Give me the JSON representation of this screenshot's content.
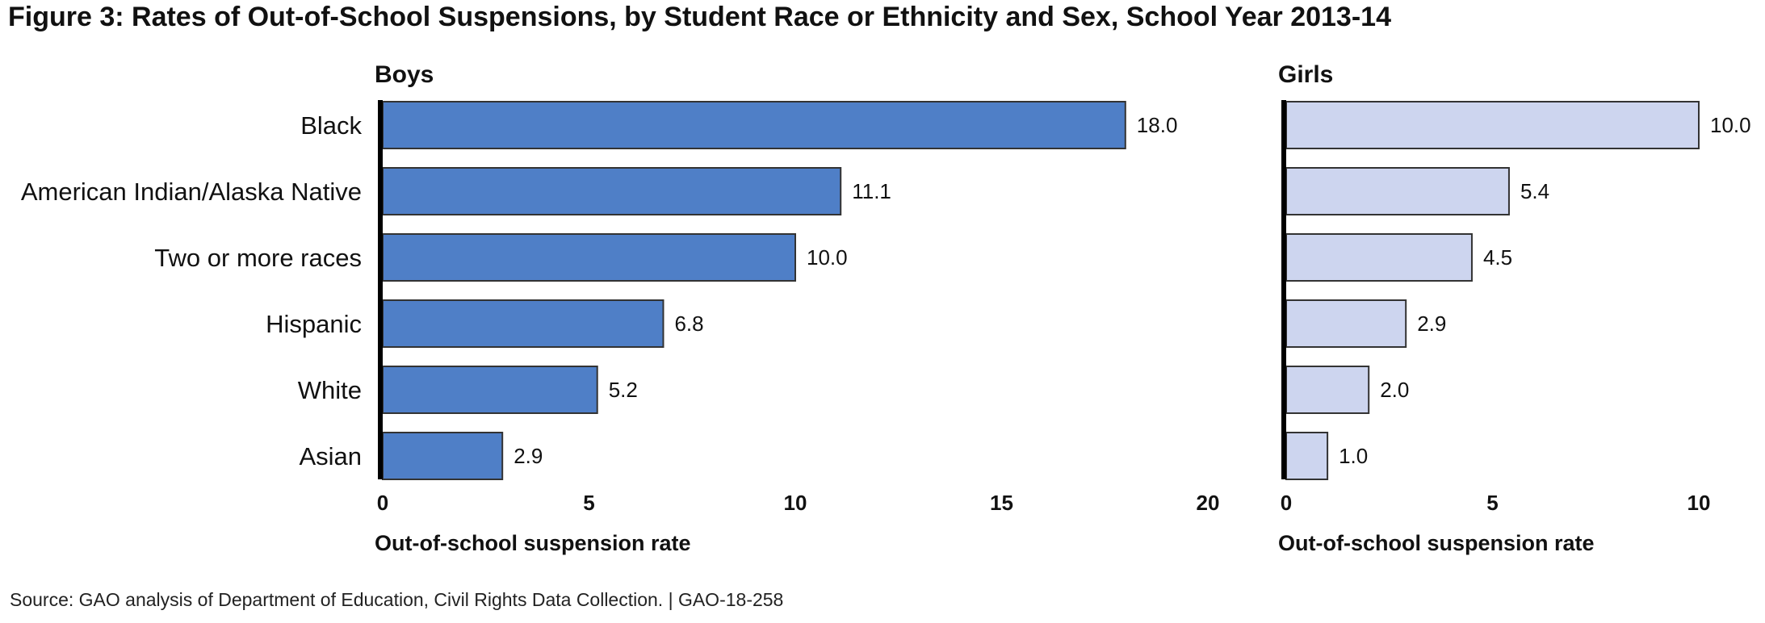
{
  "figure": {
    "title": "Figure 3: Rates of Out-of-School Suspensions, by Student Race or Ethnicity and Sex, School Year 2013-14",
    "source": "Source: GAO analysis of Department of Education, Civil Rights Data Collection.  |  GAO-18-258"
  },
  "chart_data": [
    {
      "type": "bar",
      "orientation": "horizontal",
      "title": "Boys",
      "categories": [
        "Black",
        "American Indian/Alaska Native",
        "Two or more races",
        "Hispanic",
        "White",
        "Asian"
      ],
      "values": [
        18.0,
        11.1,
        10.0,
        6.8,
        5.2,
        2.9
      ],
      "value_labels": [
        "18.0",
        "11.1",
        "10.0",
        "6.8",
        "5.2",
        "2.9"
      ],
      "xlabel": "Out-of-school suspension rate",
      "xlim": [
        0,
        20
      ],
      "xticks": [
        0,
        5,
        10,
        15,
        20
      ],
      "xtick_labels": [
        "0",
        "5",
        "10",
        "15",
        "20"
      ],
      "grid": false,
      "color": "#4f7fc7"
    },
    {
      "type": "bar",
      "orientation": "horizontal",
      "title": "Girls",
      "categories": [
        "Black",
        "American Indian/Alaska Native",
        "Two or more races",
        "Hispanic",
        "White",
        "Asian"
      ],
      "values": [
        10.0,
        5.4,
        4.5,
        2.9,
        2.0,
        1.0
      ],
      "value_labels": [
        "10.0",
        "5.4",
        "4.5",
        "2.9",
        "2.0",
        "1.0"
      ],
      "xlabel": "Out-of-school suspension rate",
      "xlim": [
        0,
        10
      ],
      "xticks": [
        0,
        5,
        10
      ],
      "xtick_labels": [
        "0",
        "5",
        "10"
      ],
      "grid": false,
      "color": "#cdd5ef"
    }
  ]
}
